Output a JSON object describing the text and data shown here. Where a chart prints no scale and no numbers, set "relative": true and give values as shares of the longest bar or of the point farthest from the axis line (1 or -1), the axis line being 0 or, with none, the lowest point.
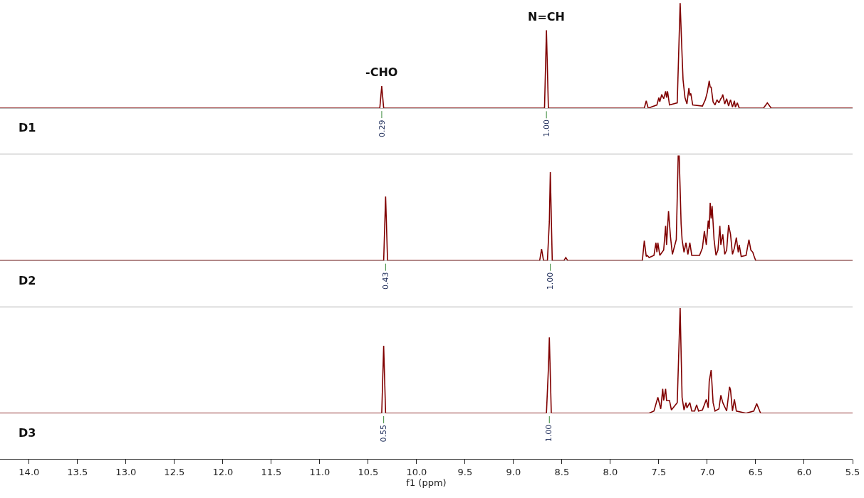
{
  "chart_data": [
    {
      "type": "line",
      "title": "D1",
      "relative": true,
      "xlim": [
        14.3,
        5.5
      ],
      "tick_labels": false,
      "x": [
        14.3,
        10.38,
        10.36,
        10.34,
        8.68,
        8.66,
        8.64,
        7.65,
        7.63,
        7.61,
        7.52,
        7.5,
        7.49,
        7.47,
        7.45,
        7.43,
        7.42,
        7.41,
        7.39,
        7.31,
        7.28,
        7.26,
        7.25,
        7.23,
        7.21,
        7.19,
        7.18,
        7.17,
        7.15,
        7.05,
        7.02,
        7.0,
        6.98,
        6.97,
        6.96,
        6.94,
        6.92,
        6.9,
        6.88,
        6.86,
        6.85,
        6.84,
        6.82,
        6.8,
        6.78,
        6.76,
        6.74,
        6.72,
        6.71,
        6.69,
        6.67,
        6.42,
        6.38,
        6.34,
        5.5
      ],
      "series": [
        {
          "color": "#800000",
          "values": [
            0,
            0,
            0.21,
            0,
            0,
            0.74,
            0,
            0,
            0.07,
            0,
            0.03,
            0.1,
            0.06,
            0.13,
            0.09,
            0.16,
            0.1,
            0.16,
            0.03,
            0.05,
            1,
            0.5,
            0.27,
            0.1,
            0.04,
            0.19,
            0.12,
            0.14,
            0.03,
            0.02,
            0.08,
            0.15,
            0.26,
            0.2,
            0.2,
            0.06,
            0.03,
            0.08,
            0.05,
            0.09,
            0.1,
            0.13,
            0.04,
            0.09,
            0.02,
            0.08,
            0.01,
            0.07,
            0.01,
            0.05,
            0,
            0,
            0.05,
            0,
            0
          ]
        }
      ],
      "annotations": [
        {
          "text": "-CHO",
          "x": 10.36,
          "y": 0.21
        },
        {
          "text": "N=CH",
          "x": 8.66,
          "y": 0.74
        },
        {
          "text": "0.29",
          "x": 10.36,
          "y": 0.21
        },
        {
          "text": "1.00",
          "x": 8.66,
          "y": 0.74
        }
      ]
    },
    {
      "type": "line",
      "title": "D2",
      "relative": true,
      "xlim": [
        14.3,
        5.5
      ],
      "tick_labels": false,
      "x": [
        14.3,
        10.34,
        10.32,
        10.3,
        8.73,
        8.71,
        8.69,
        8.65,
        8.63,
        8.62,
        8.6,
        8.48,
        8.46,
        8.44,
        7.67,
        7.65,
        7.63,
        7.62,
        7.6,
        7.55,
        7.53,
        7.52,
        7.51,
        7.49,
        7.45,
        7.43,
        7.42,
        7.4,
        7.38,
        7.36,
        7.32,
        7.3,
        7.29,
        7.27,
        7.26,
        7.24,
        7.22,
        7.2,
        7.18,
        7.16,
        7.12,
        7.08,
        7.05,
        7.03,
        7.01,
        6.99,
        6.98,
        6.97,
        6.96,
        6.95,
        6.93,
        6.91,
        6.89,
        6.87,
        6.86,
        6.84,
        6.82,
        6.8,
        6.78,
        6.76,
        6.74,
        6.72,
        6.7,
        6.68,
        6.67,
        6.65,
        6.6,
        6.57,
        6.55,
        6.53,
        6.52,
        6.5,
        5.5
      ],
      "series": [
        {
          "color": "#800000",
          "values": [
            0,
            0,
            0.61,
            0,
            0,
            0.11,
            0,
            0,
            0.37,
            0.84,
            0,
            0,
            0.03,
            0,
            0,
            0.19,
            0.04,
            0.05,
            0.03,
            0.05,
            0.17,
            0.08,
            0.17,
            0.05,
            0.1,
            0.33,
            0.15,
            0.47,
            0.23,
            0.06,
            0.2,
            1,
            1,
            0.35,
            0.2,
            0.08,
            0.17,
            0.06,
            0.17,
            0.05,
            0.05,
            0.05,
            0.12,
            0.28,
            0.15,
            0.38,
            0.3,
            0.55,
            0.4,
            0.52,
            0.2,
            0.05,
            0.1,
            0.33,
            0.15,
            0.25,
            0.06,
            0.1,
            0.34,
            0.25,
            0.06,
            0.12,
            0.22,
            0.08,
            0.15,
            0.04,
            0.05,
            0.2,
            0.1,
            0.08,
            0.05,
            0,
            0
          ]
        }
      ],
      "annotations": [
        {
          "text": "0.43",
          "x": 10.32,
          "y": 0.61
        },
        {
          "text": "1.00",
          "x": 8.62,
          "y": 0.84
        }
      ]
    },
    {
      "type": "line",
      "title": "D3",
      "relative": true,
      "xlim": [
        14.3,
        5.5
      ],
      "tick_labels": "x",
      "xlabel": "f1 (ppm)",
      "xticks": [
        {
          "value": 14,
          "label": "14.0"
        },
        {
          "value": 13.5,
          "label": "13.5"
        },
        {
          "value": 13,
          "label": "13.0"
        },
        {
          "value": 12.5,
          "label": "12.5"
        },
        {
          "value": 12,
          "label": "12.0"
        },
        {
          "value": 11.5,
          "label": "11.5"
        },
        {
          "value": 11,
          "label": "11.0"
        },
        {
          "value": 10.5,
          "label": "10.5"
        },
        {
          "value": 10,
          "label": "10.0"
        },
        {
          "value": 9.5,
          "label": "9.5"
        },
        {
          "value": 9,
          "label": "9.0"
        },
        {
          "value": 8.5,
          "label": "8.5"
        },
        {
          "value": 8,
          "label": "8.0"
        },
        {
          "value": 7.5,
          "label": "7.5"
        },
        {
          "value": 7,
          "label": "7.0"
        },
        {
          "value": 6.5,
          "label": "6.5"
        },
        {
          "value": 6,
          "label": "6.0"
        },
        {
          "value": 5.5,
          "label": "5.5"
        }
      ],
      "x": [
        14.3,
        10.36,
        10.34,
        10.32,
        8.66,
        8.64,
        8.63,
        8.61,
        7.6,
        7.55,
        7.51,
        7.48,
        7.46,
        7.45,
        7.43,
        7.42,
        7.41,
        7.39,
        7.37,
        7.31,
        7.28,
        7.26,
        7.24,
        7.22,
        7.21,
        7.18,
        7.16,
        7.13,
        7.11,
        7.09,
        7.05,
        7.01,
        6.99,
        6.98,
        6.96,
        6.94,
        6.92,
        6.88,
        6.86,
        6.84,
        6.8,
        6.77,
        6.76,
        6.74,
        6.72,
        6.7,
        6.6,
        6.52,
        6.49,
        6.45,
        5.5
      ],
      "series": [
        {
          "color": "#800000",
          "values": [
            0,
            0,
            0.64,
            0,
            0,
            0.42,
            0.72,
            0,
            0,
            0.02,
            0.15,
            0.04,
            0.23,
            0.12,
            0.23,
            0.12,
            0.12,
            0.12,
            0.03,
            0.1,
            1,
            0.15,
            0.03,
            0.1,
            0.05,
            0.1,
            0.02,
            0.02,
            0.08,
            0.02,
            0.03,
            0.13,
            0.05,
            0.3,
            0.41,
            0.1,
            0.02,
            0.04,
            0.17,
            0.1,
            0.02,
            0.25,
            0.22,
            0.02,
            0.13,
            0.02,
            0,
            0.02,
            0.09,
            0,
            0
          ]
        }
      ],
      "annotations": [
        {
          "text": "0.55",
          "x": 10.34,
          "y": 0.64
        },
        {
          "text": "1.00",
          "x": 8.63,
          "y": 0.72
        }
      ]
    }
  ]
}
